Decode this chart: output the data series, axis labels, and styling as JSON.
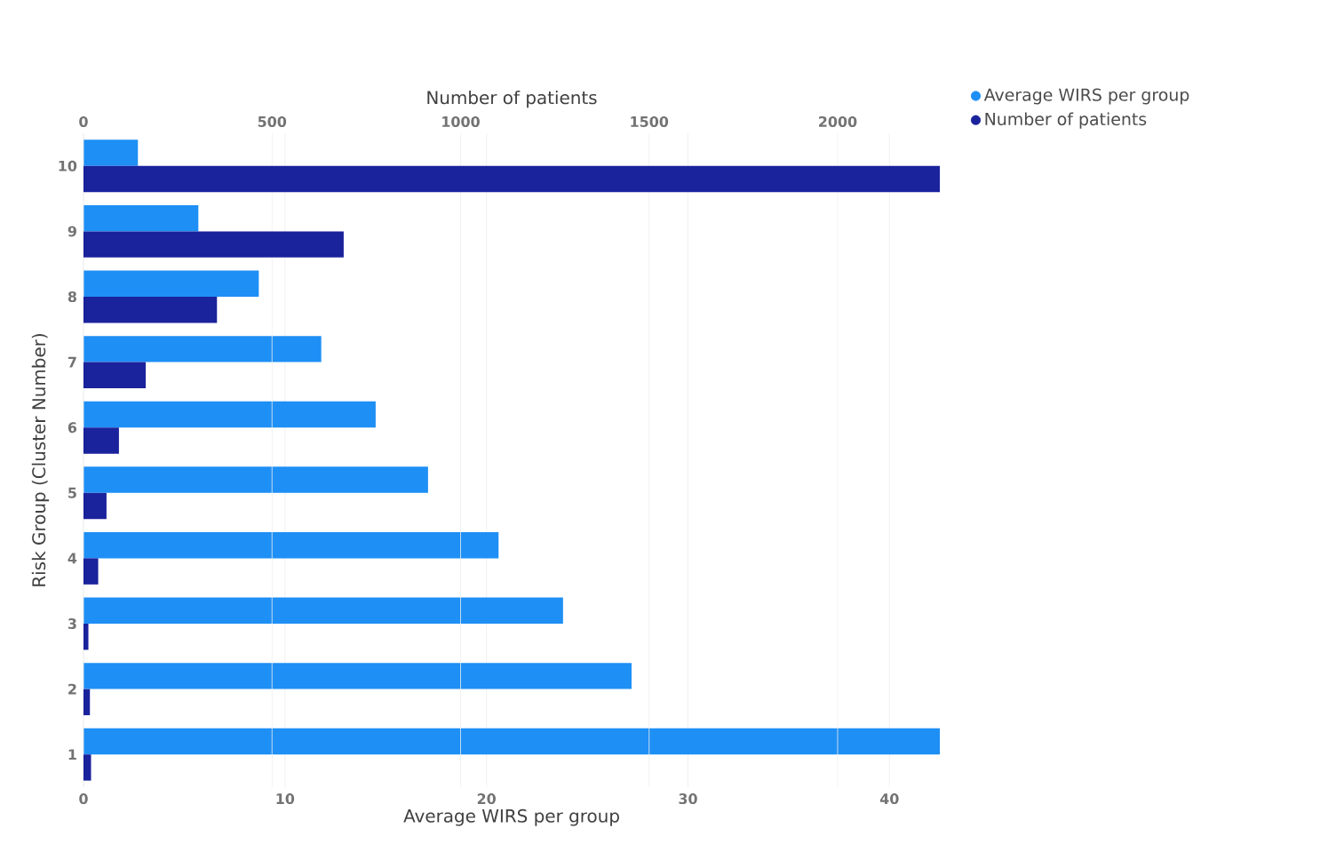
{
  "chart_data": {
    "type": "bar",
    "orientation": "horizontal",
    "xlabel": "Average WIRS per group",
    "x2label": "Number of patients",
    "ylabel": "Risk Group (Cluster Number)",
    "categories": [
      "10",
      "9",
      "8",
      "7",
      "6",
      "5",
      "4",
      "3",
      "2",
      "1"
    ],
    "series": [
      {
        "name": "Average WIRS per group",
        "color": "#1e8ff5",
        "values": [
          2.7,
          5.7,
          8.7,
          11.8,
          14.5,
          17.1,
          20.6,
          23.8,
          27.2,
          42.5
        ]
      },
      {
        "name": "Number of patients",
        "color": "#1a229c",
        "axis": "x2",
        "values": [
          2271,
          690,
          354,
          165,
          94,
          61,
          39,
          13,
          17,
          20
        ]
      }
    ],
    "xlim": [
      0,
      42.5
    ],
    "xticks": [
      0,
      10,
      20,
      30,
      40
    ],
    "x2lim": [
      0,
      2271
    ],
    "x2ticks": [
      0,
      500,
      1000,
      1500,
      2000
    ],
    "grid": "x",
    "legend": "top right"
  }
}
